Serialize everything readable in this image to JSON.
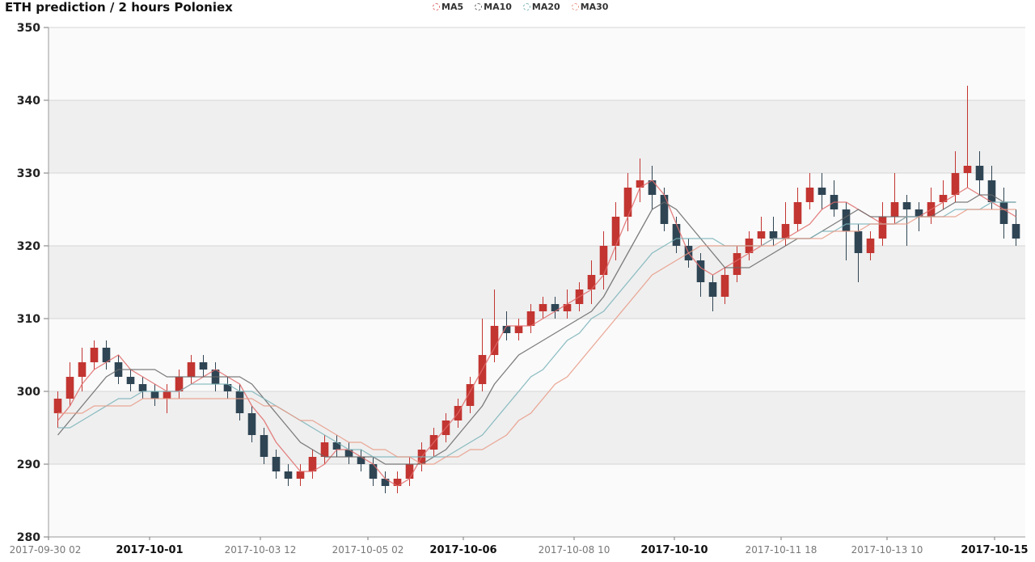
{
  "chart_data": {
    "type": "candlestick",
    "title": "ETH prediction / 2 hours Poloniex",
    "ylim": [
      280,
      350
    ],
    "y_ticks": [
      "350",
      "340",
      "330",
      "320",
      "310",
      "300",
      "290",
      "280"
    ],
    "x_ticks": [
      {
        "label": "2017-09-30 02",
        "bold": false
      },
      {
        "label": "2017-10-01",
        "bold": true
      },
      {
        "label": "2017-10-03 12",
        "bold": false
      },
      {
        "label": "2017-10-05 02",
        "bold": false
      },
      {
        "label": "2017-10-06",
        "bold": true
      },
      {
        "label": "2017-10-08 10",
        "bold": false
      },
      {
        "label": "2017-10-10",
        "bold": true
      },
      {
        "label": "2017-10-11 18",
        "bold": false
      },
      {
        "label": "2017-10-13 10",
        "bold": false
      },
      {
        "label": "2017-10-15",
        "bold": true
      }
    ],
    "grid": true,
    "legend_position": "top-center",
    "colors": {
      "up": "#c23531",
      "down": "#2f4554",
      "band": "#efefef",
      "plot_bg": "#fafafa"
    },
    "series": [
      {
        "name": "MA5",
        "color": "#e06a6a",
        "values": [
          296,
          298,
          301,
          303,
          304,
          305,
          303,
          302,
          301,
          300,
          300,
          301,
          302,
          303,
          302,
          301,
          298,
          296,
          293,
          291,
          289,
          289,
          290,
          292,
          292,
          291,
          290,
          288,
          287,
          288,
          291,
          293,
          295,
          297,
          300,
          303,
          306,
          309,
          309,
          309,
          310,
          311,
          312,
          313,
          314,
          316,
          320,
          324,
          328,
          329,
          327,
          323,
          319,
          317,
          316,
          317,
          318,
          319,
          320,
          321,
          321,
          322,
          323,
          325,
          326,
          326,
          325,
          324,
          323,
          323,
          324,
          324,
          325,
          326,
          327,
          328,
          327,
          326,
          325,
          324
        ]
      },
      {
        "name": "MA10",
        "color": "#666666",
        "values": [
          294,
          296,
          298,
          300,
          302,
          303,
          303,
          303,
          303,
          302,
          302,
          302,
          302,
          302,
          302,
          302,
          301,
          299,
          297,
          295,
          293,
          292,
          291,
          291,
          291,
          291,
          291,
          290,
          290,
          290,
          290,
          291,
          292,
          294,
          296,
          298,
          301,
          303,
          305,
          306,
          307,
          308,
          309,
          310,
          311,
          313,
          316,
          319,
          322,
          325,
          326,
          325,
          323,
          321,
          319,
          317,
          317,
          317,
          318,
          319,
          320,
          321,
          321,
          322,
          323,
          324,
          325,
          324,
          324,
          324,
          324,
          324,
          324,
          325,
          326,
          326,
          327,
          327,
          326,
          326
        ]
      },
      {
        "name": "MA20",
        "color": "#7ab3b8",
        "values": [
          295,
          295,
          296,
          297,
          298,
          299,
          299,
          300,
          300,
          300,
          300,
          301,
          301,
          301,
          301,
          300,
          300,
          299,
          298,
          297,
          296,
          295,
          294,
          293,
          292,
          292,
          291,
          291,
          291,
          291,
          291,
          291,
          291,
          292,
          293,
          294,
          296,
          298,
          300,
          302,
          303,
          305,
          307,
          308,
          310,
          311,
          313,
          315,
          317,
          319,
          320,
          321,
          321,
          321,
          321,
          320,
          320,
          320,
          320,
          321,
          321,
          321,
          321,
          322,
          322,
          323,
          323,
          323,
          323,
          323,
          324,
          324,
          324,
          324,
          325,
          325,
          325,
          326,
          326,
          326
        ]
      },
      {
        "name": "MA30",
        "color": "#e89a86",
        "values": [
          297,
          297,
          297,
          298,
          298,
          298,
          298,
          299,
          299,
          299,
          299,
          299,
          299,
          299,
          299,
          299,
          299,
          298,
          298,
          297,
          296,
          296,
          295,
          294,
          293,
          293,
          292,
          292,
          291,
          291,
          290,
          290,
          291,
          291,
          292,
          292,
          293,
          294,
          296,
          297,
          299,
          301,
          302,
          304,
          306,
          308,
          310,
          312,
          314,
          316,
          317,
          318,
          319,
          320,
          320,
          320,
          320,
          320,
          320,
          320,
          321,
          321,
          321,
          321,
          322,
          322,
          322,
          323,
          323,
          323,
          323,
          324,
          324,
          324,
          324,
          325,
          325,
          325,
          325,
          325
        ]
      }
    ],
    "candles": [
      [
        297,
        299,
        295,
        300
      ],
      [
        299,
        302,
        298,
        304
      ],
      [
        302,
        304,
        300,
        306
      ],
      [
        304,
        306,
        303,
        307
      ],
      [
        306,
        304,
        303,
        307
      ],
      [
        304,
        302,
        301,
        305
      ],
      [
        302,
        301,
        300,
        303
      ],
      [
        301,
        300,
        299,
        302
      ],
      [
        300,
        299,
        298,
        301
      ],
      [
        299,
        300,
        297,
        301
      ],
      [
        300,
        302,
        299,
        303
      ],
      [
        302,
        304,
        301,
        305
      ],
      [
        304,
        303,
        302,
        305
      ],
      [
        303,
        301,
        300,
        304
      ],
      [
        301,
        300,
        299,
        302
      ],
      [
        300,
        297,
        296,
        301
      ],
      [
        297,
        294,
        293,
        298
      ],
      [
        294,
        291,
        290,
        295
      ],
      [
        291,
        289,
        288,
        292
      ],
      [
        289,
        288,
        287,
        290
      ],
      [
        288,
        289,
        287,
        290
      ],
      [
        289,
        291,
        288,
        292
      ],
      [
        291,
        293,
        290,
        294
      ],
      [
        293,
        292,
        291,
        294
      ],
      [
        292,
        291,
        290,
        293
      ],
      [
        291,
        290,
        289,
        292
      ],
      [
        290,
        288,
        287,
        291
      ],
      [
        288,
        287,
        286,
        289
      ],
      [
        287,
        288,
        286,
        289
      ],
      [
        288,
        290,
        287,
        291
      ],
      [
        290,
        292,
        289,
        293
      ],
      [
        292,
        294,
        291,
        295
      ],
      [
        294,
        296,
        293,
        297
      ],
      [
        296,
        298,
        295,
        299
      ],
      [
        298,
        301,
        297,
        302
      ],
      [
        301,
        305,
        300,
        310
      ],
      [
        305,
        309,
        304,
        314
      ],
      [
        309,
        308,
        307,
        311
      ],
      [
        308,
        309,
        307,
        310
      ],
      [
        309,
        311,
        308,
        312
      ],
      [
        311,
        312,
        310,
        313
      ],
      [
        312,
        311,
        310,
        313
      ],
      [
        311,
        312,
        310,
        314
      ],
      [
        312,
        314,
        311,
        315
      ],
      [
        314,
        316,
        312,
        318
      ],
      [
        316,
        320,
        314,
        322
      ],
      [
        320,
        324,
        318,
        326
      ],
      [
        324,
        328,
        322,
        330
      ],
      [
        328,
        329,
        326,
        332
      ],
      [
        329,
        327,
        325,
        331
      ],
      [
        327,
        323,
        322,
        328
      ],
      [
        323,
        320,
        319,
        324
      ],
      [
        320,
        318,
        317,
        321
      ],
      [
        318,
        315,
        313,
        319
      ],
      [
        315,
        313,
        311,
        316
      ],
      [
        313,
        316,
        312,
        317
      ],
      [
        316,
        319,
        315,
        320
      ],
      [
        319,
        321,
        318,
        322
      ],
      [
        321,
        322,
        320,
        324
      ],
      [
        322,
        321,
        320,
        324
      ],
      [
        321,
        323,
        320,
        326
      ],
      [
        323,
        326,
        322,
        328
      ],
      [
        326,
        328,
        325,
        330
      ],
      [
        328,
        327,
        325,
        330
      ],
      [
        327,
        325,
        324,
        329
      ],
      [
        325,
        322,
        318,
        326
      ],
      [
        322,
        319,
        315,
        323
      ],
      [
        319,
        321,
        318,
        322
      ],
      [
        321,
        324,
        320,
        326
      ],
      [
        324,
        326,
        323,
        330
      ],
      [
        326,
        325,
        320,
        327
      ],
      [
        325,
        324,
        322,
        326
      ],
      [
        324,
        326,
        323,
        328
      ],
      [
        326,
        327,
        325,
        329
      ],
      [
        327,
        330,
        326,
        333
      ],
      [
        330,
        331,
        328,
        342
      ],
      [
        331,
        329,
        327,
        333
      ],
      [
        329,
        326,
        325,
        331
      ],
      [
        326,
        323,
        321,
        328
      ],
      [
        323,
        321,
        320,
        325
      ]
    ]
  }
}
